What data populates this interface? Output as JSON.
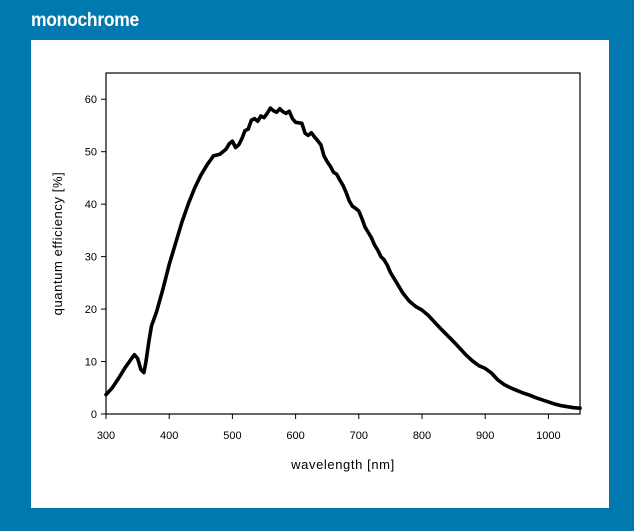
{
  "panel_title": "monochrome",
  "colors": {
    "frame": "#0079b0",
    "panel": "#ffffff",
    "line": "#000000"
  },
  "chart_data": {
    "type": "line",
    "xlabel": "wavelength [nm]",
    "ylabel": "quantum efficiency [%]",
    "xlim": [
      300,
      1050
    ],
    "ylim": [
      0,
      65
    ],
    "xticks": [
      300,
      400,
      500,
      600,
      700,
      800,
      900,
      1000
    ],
    "yticks": [
      0,
      10,
      20,
      30,
      40,
      50,
      60
    ],
    "grid": false,
    "legend": "none",
    "series": [
      {
        "x": [
          300,
          310,
          320,
          330,
          340,
          345,
          350,
          355,
          360,
          363,
          368,
          372,
          380,
          390,
          400,
          410,
          420,
          430,
          440,
          450,
          460,
          470,
          480,
          490,
          495,
          500,
          505,
          510,
          515,
          520,
          525,
          530,
          535,
          540,
          545,
          550,
          555,
          560,
          565,
          570,
          575,
          580,
          585,
          590,
          595,
          600,
          605,
          610,
          615,
          620,
          625,
          630,
          635,
          640,
          645,
          650,
          655,
          660,
          665,
          670,
          675,
          680,
          685,
          690,
          695,
          700,
          705,
          710,
          715,
          720,
          725,
          730,
          735,
          740,
          745,
          750,
          760,
          770,
          780,
          790,
          800,
          810,
          820,
          830,
          840,
          850,
          860,
          870,
          880,
          890,
          900,
          910,
          920,
          930,
          940,
          950,
          960,
          970,
          980,
          990,
          1000,
          1010,
          1020,
          1030,
          1040,
          1050
        ],
        "values": [
          3.7,
          5,
          6.8,
          8.8,
          10.5,
          11.3,
          10.6,
          8.5,
          7.9,
          9.8,
          14,
          16.8,
          19.5,
          23.8,
          28.5,
          32.5,
          36.5,
          40,
          43,
          45.5,
          47.5,
          49.2,
          49.5,
          50.5,
          51.5,
          52,
          50.8,
          51.3,
          52.5,
          54,
          54.3,
          56,
          56.3,
          55.8,
          56.8,
          56.5,
          57.3,
          58.3,
          57.8,
          57.5,
          58.2,
          57.6,
          57.3,
          57.7,
          56.3,
          55.6,
          55.5,
          55.4,
          53.5,
          53.1,
          53.6,
          52.8,
          52.1,
          51.3,
          49.2,
          48.1,
          47.2,
          46.1,
          45.7,
          44.6,
          43.6,
          42.2,
          40.6,
          39.6,
          39.2,
          38.7,
          37.2,
          35.6,
          34.6,
          33.6,
          32.2,
          31.2,
          30,
          29.4,
          28.4,
          27,
          25,
          23,
          21.5,
          20.5,
          19.8,
          18.8,
          17.5,
          16.2,
          15,
          13.8,
          12.5,
          11.2,
          10.1,
          9.2,
          8.7,
          7.8,
          6.5,
          5.6,
          5,
          4.5,
          4,
          3.6,
          3.1,
          2.7,
          2.3,
          1.9,
          1.6,
          1.4,
          1.2,
          1.1
        ]
      }
    ]
  }
}
